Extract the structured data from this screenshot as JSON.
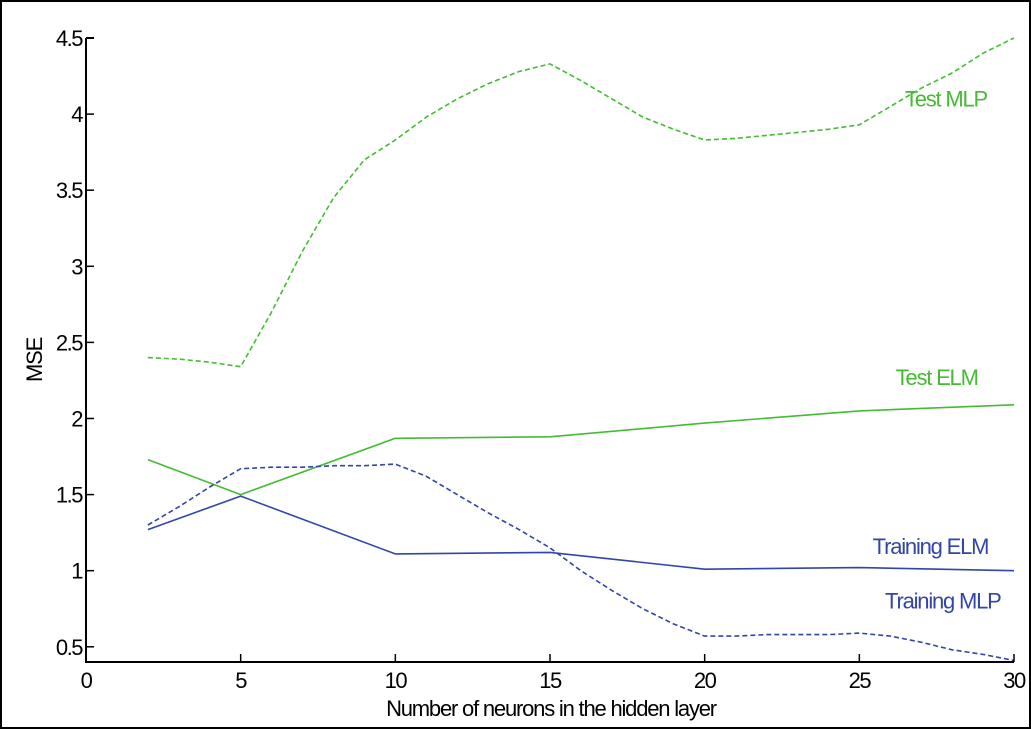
{
  "chart_data": {
    "type": "line",
    "title": "",
    "xlabel": "Number of neurons in the hidden layer",
    "ylabel": "MSE",
    "xlim": [
      0,
      30
    ],
    "ylim": [
      0.4,
      4.5
    ],
    "xticks": [
      0,
      5,
      10,
      15,
      20,
      25,
      30
    ],
    "yticks": [
      0.5,
      1,
      1.5,
      2,
      2.5,
      3,
      3.5,
      4,
      4.5
    ],
    "xtick_labels": [
      "0",
      "5",
      "10",
      "15",
      "20",
      "25",
      "30"
    ],
    "ytick_labels": [
      "0.5",
      "1",
      "1.5",
      "2",
      "2.5",
      "3",
      "3.5",
      "4",
      "4.5"
    ],
    "grid": false,
    "legend": "inline labels next to each line",
    "colors": {
      "test": "#44bb33",
      "training": "#3344aa"
    },
    "series": [
      {
        "name": "Test MLP",
        "color": "#44bb33",
        "style": "dashed",
        "x": [
          2,
          3,
          4,
          5,
          6,
          7,
          8,
          9,
          10,
          11,
          12,
          13,
          14,
          15,
          16,
          17,
          18,
          19,
          20,
          21,
          22,
          23,
          24,
          25,
          26,
          27,
          28,
          29,
          30
        ],
        "y": [
          2.4,
          2.39,
          2.37,
          2.34,
          2.7,
          3.1,
          3.45,
          3.7,
          3.83,
          3.98,
          4.1,
          4.2,
          4.28,
          4.33,
          4.22,
          4.1,
          3.98,
          3.9,
          3.83,
          3.84,
          3.86,
          3.88,
          3.9,
          3.93,
          4.05,
          4.17,
          4.27,
          4.4,
          4.5
        ]
      },
      {
        "name": "Test ELM",
        "color": "#44bb33",
        "style": "solid",
        "x": [
          2,
          5,
          10,
          15,
          20,
          25,
          30
        ],
        "y": [
          1.73,
          1.5,
          1.87,
          1.88,
          1.97,
          2.05,
          2.09
        ]
      },
      {
        "name": "Training ELM",
        "color": "#3344aa",
        "style": "solid",
        "x": [
          2,
          5,
          10,
          15,
          20,
          25,
          30
        ],
        "y": [
          1.27,
          1.49,
          1.11,
          1.12,
          1.01,
          1.02,
          1.0
        ]
      },
      {
        "name": "Training MLP",
        "color": "#3344aa",
        "style": "dashed",
        "x": [
          2,
          3,
          4,
          5,
          6,
          7,
          8,
          9,
          10,
          11,
          12,
          13,
          14,
          15,
          16,
          17,
          18,
          19,
          20,
          21,
          22,
          23,
          24,
          25,
          26,
          27,
          28,
          29,
          30
        ],
        "y": [
          1.3,
          1.42,
          1.55,
          1.67,
          1.68,
          1.68,
          1.69,
          1.69,
          1.7,
          1.62,
          1.5,
          1.38,
          1.27,
          1.15,
          1.0,
          0.87,
          0.75,
          0.65,
          0.57,
          0.57,
          0.58,
          0.58,
          0.58,
          0.59,
          0.57,
          0.53,
          0.48,
          0.45,
          0.41
        ]
      }
    ]
  }
}
